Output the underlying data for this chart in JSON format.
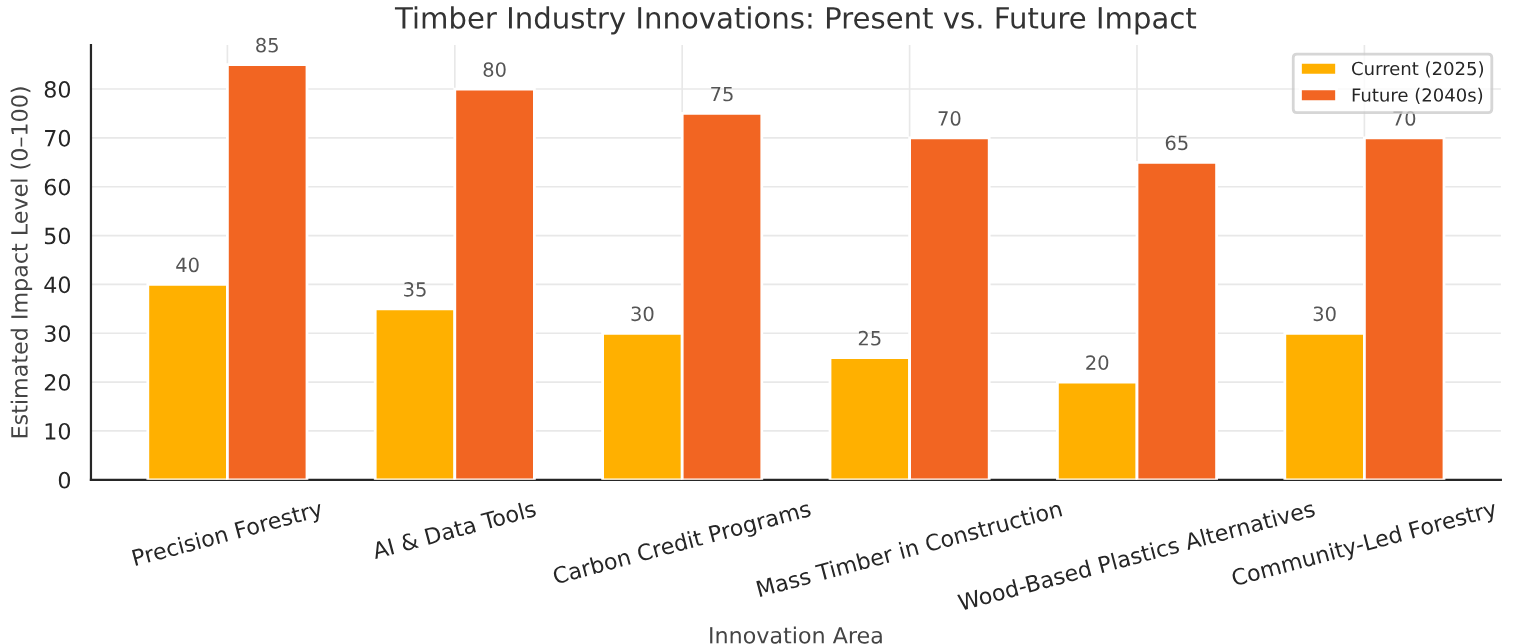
{
  "chart_data": {
    "type": "bar",
    "title": "Timber Industry Innovations: Present vs. Future Impact",
    "xlabel": "Innovation Area",
    "ylabel": "Estimated Impact Level (0–100)",
    "categories": [
      "Precision Forestry",
      "AI & Data Tools",
      "Carbon Credit Programs",
      "Mass Timber in Construction",
      "Wood-Based Plastics Alternatives",
      "Community-Led Forestry"
    ],
    "series": [
      {
        "name": "Current (2025)",
        "color": "#ffb000",
        "values": [
          40,
          35,
          30,
          25,
          20,
          30
        ]
      },
      {
        "name": "Future (2040s)",
        "color": "#f26522",
        "values": [
          85,
          80,
          75,
          70,
          65,
          70
        ]
      }
    ],
    "ylim": [
      0,
      89
    ],
    "yticks": [
      0,
      10,
      20,
      30,
      40,
      50,
      60,
      70,
      80
    ],
    "grid": true,
    "legend": "top right",
    "data_labels": true
  }
}
